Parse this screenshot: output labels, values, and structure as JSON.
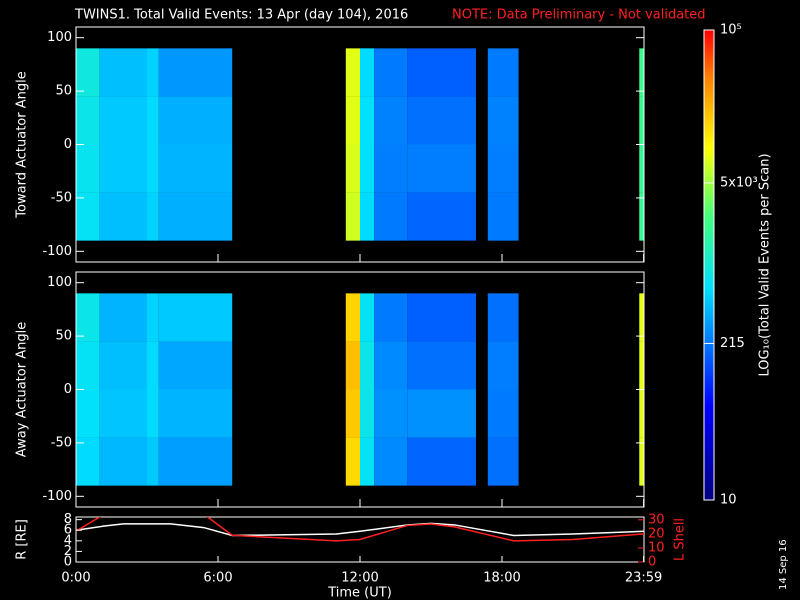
{
  "title": "TWINS1. Total Valid Events: 13 Apr (day 104), 2016",
  "note": "NOTE: Data Preliminary - Not validated",
  "stamp": "14 Sep 16",
  "colorbar": {
    "label": "LOG₁₀(Total Valid Events per Scan)",
    "log": true,
    "zlim": [
      10,
      100000
    ],
    "zticks": [
      10,
      215,
      {
        "value": 5000,
        "label": "5x10³"
      },
      {
        "value": 100000,
        "label": "10⁵"
      }
    ],
    "colors": [
      {
        "at": 0,
        "color": "#00007f"
      },
      {
        "at": 0.2,
        "color": "#0000ff"
      },
      {
        "at": 0.45,
        "color": "#00e0ff"
      },
      {
        "at": 0.6,
        "color": "#40ff80"
      },
      {
        "at": 0.75,
        "color": "#ffff00"
      },
      {
        "at": 0.9,
        "color": "#ff8000"
      },
      {
        "at": 1,
        "color": "#ff0000"
      }
    ]
  },
  "chart_data": [
    {
      "type": "heatmap",
      "ylabel": "Toward Actuator Angle",
      "xlim": [
        0,
        24
      ],
      "ylim": [
        -110,
        110
      ],
      "yticks": [
        -100,
        -50,
        0,
        50,
        100
      ],
      "x_edges": [
        0,
        1,
        3,
        3.5,
        6.6,
        11.4,
        12,
        12.6,
        14,
        16.9,
        17.4,
        18.7,
        23.8,
        24
      ],
      "y_edges": [
        -90,
        -45,
        0,
        45,
        90
      ],
      "values": [
        [
          700,
          450,
          550,
          380,
          null,
          7000,
          600,
          220,
          180,
          null,
          220,
          null,
          2000
        ],
        [
          750,
          500,
          600,
          400,
          null,
          7500,
          650,
          230,
          230,
          null,
          230,
          null,
          2000
        ],
        [
          800,
          500,
          600,
          380,
          null,
          8000,
          650,
          240,
          200,
          null,
          240,
          null,
          2100
        ],
        [
          900,
          450,
          550,
          300,
          null,
          8000,
          600,
          220,
          170,
          null,
          220,
          null,
          2200
        ]
      ]
    },
    {
      "type": "heatmap",
      "ylabel": "Away Actuator Angle",
      "xlim": [
        0,
        24
      ],
      "ylim": [
        -110,
        110
      ],
      "yticks": [
        -100,
        -50,
        0,
        50,
        100
      ],
      "x_edges": [
        0,
        1,
        3,
        3.5,
        6.6,
        11.4,
        12,
        12.6,
        14,
        16.9,
        17.4,
        18.7,
        23.8,
        24
      ],
      "y_edges": [
        -90,
        -45,
        0,
        45,
        90
      ],
      "values": [
        [
          600,
          420,
          500,
          320,
          null,
          15000,
          700,
          260,
          180,
          null,
          200,
          null,
          8000
        ],
        [
          650,
          480,
          600,
          400,
          null,
          18000,
          800,
          280,
          280,
          null,
          220,
          null,
          8000
        ],
        [
          700,
          450,
          600,
          350,
          null,
          20000,
          800,
          260,
          200,
          null,
          230,
          null,
          8500
        ],
        [
          800,
          400,
          550,
          500,
          null,
          16000,
          700,
          220,
          170,
          null,
          200,
          null,
          8500
        ]
      ]
    },
    {
      "type": "line",
      "xlabel": "Time (UT)",
      "xlim": [
        0,
        24
      ],
      "xticks": [
        {
          "value": 0,
          "label": "0:00"
        },
        {
          "value": 6,
          "label": "6:00"
        },
        {
          "value": 12,
          "label": "12:00"
        },
        {
          "value": 18,
          "label": "18:00"
        },
        {
          "value": 23.983,
          "label": "23:59"
        }
      ],
      "ylim": [
        0,
        8.5
      ],
      "yticks": [
        0,
        2,
        4,
        6,
        8
      ],
      "y2lim": [
        0,
        32
      ],
      "y2ticks": [
        0,
        10,
        20,
        30
      ],
      "x": [
        0,
        1.2,
        2,
        4,
        5.4,
        6.6,
        11,
        12,
        14,
        15,
        16,
        18.5,
        21,
        24
      ],
      "series": [
        {
          "name": "R [RE]",
          "color": "#ffffff",
          "values": [
            6,
            6.8,
            7.2,
            7.2,
            6.5,
            5,
            5.3,
            5.8,
            7,
            7.3,
            7,
            5,
            5.3,
            5.8
          ]
        },
        {
          "name": "L Shell",
          "color": "#ff2020",
          "axis": "y2",
          "values": [
            22,
            34,
            null,
            null,
            34,
            19,
            15,
            16,
            26,
            27,
            25,
            15,
            16,
            20
          ]
        }
      ]
    }
  ]
}
